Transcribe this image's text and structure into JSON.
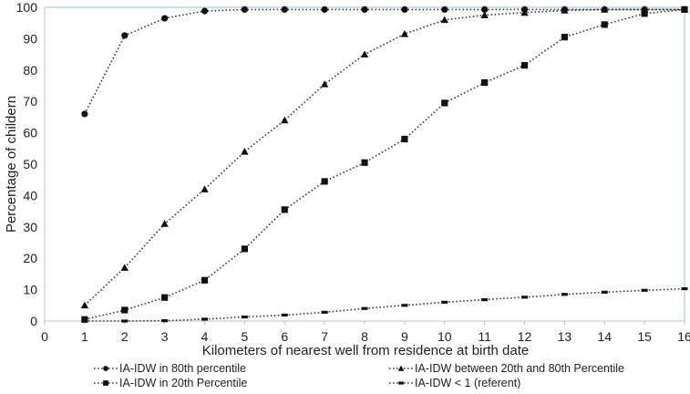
{
  "chart_data": {
    "type": "line",
    "title": "",
    "xlabel": "Kilometers of nearest well from residence at birth date",
    "ylabel": "Percentage of childern",
    "xlim": [
      0,
      16
    ],
    "ylim": [
      0,
      100
    ],
    "x_ticks": [
      0,
      1,
      2,
      3,
      4,
      5,
      6,
      7,
      8,
      9,
      10,
      11,
      12,
      13,
      14,
      15,
      16
    ],
    "y_ticks": [
      0,
      10,
      20,
      30,
      40,
      50,
      60,
      70,
      80,
      90,
      100
    ],
    "x": [
      1,
      2,
      3,
      4,
      5,
      6,
      7,
      8,
      9,
      10,
      11,
      12,
      13,
      14,
      15,
      16
    ],
    "legend_position": "bottom",
    "series": [
      {
        "name": "IA-IDW in 80th percentile",
        "marker": "circle",
        "values": [
          66,
          91,
          96.5,
          98.8,
          99.3,
          99.3,
          99.3,
          99.3,
          99.3,
          99.3,
          99.3,
          99.3,
          99.3,
          99.3,
          99.3,
          99.3
        ]
      },
      {
        "name": "IA-IDW between 20th and 80th Percentile",
        "marker": "triangle",
        "values": [
          5,
          17,
          31,
          42,
          54,
          64,
          75.5,
          85,
          91.5,
          96,
          97.5,
          98.3,
          99,
          99.3,
          99.3,
          99.3
        ]
      },
      {
        "name": "IA-IDW in 20th Percentile",
        "marker": "square",
        "values": [
          0.5,
          3.5,
          7.5,
          13,
          23,
          35.5,
          44.5,
          50.5,
          58,
          69.5,
          76,
          81.5,
          90.5,
          94.5,
          98,
          99.3
        ]
      },
      {
        "name": "IA-IDW < 1 (referent)",
        "marker": "dash",
        "values": [
          0,
          0,
          0.1,
          0.6,
          1.3,
          1.9,
          2.8,
          4,
          5,
          6,
          6.8,
          7.6,
          8.5,
          9.2,
          9.8,
          10.3
        ]
      }
    ]
  }
}
